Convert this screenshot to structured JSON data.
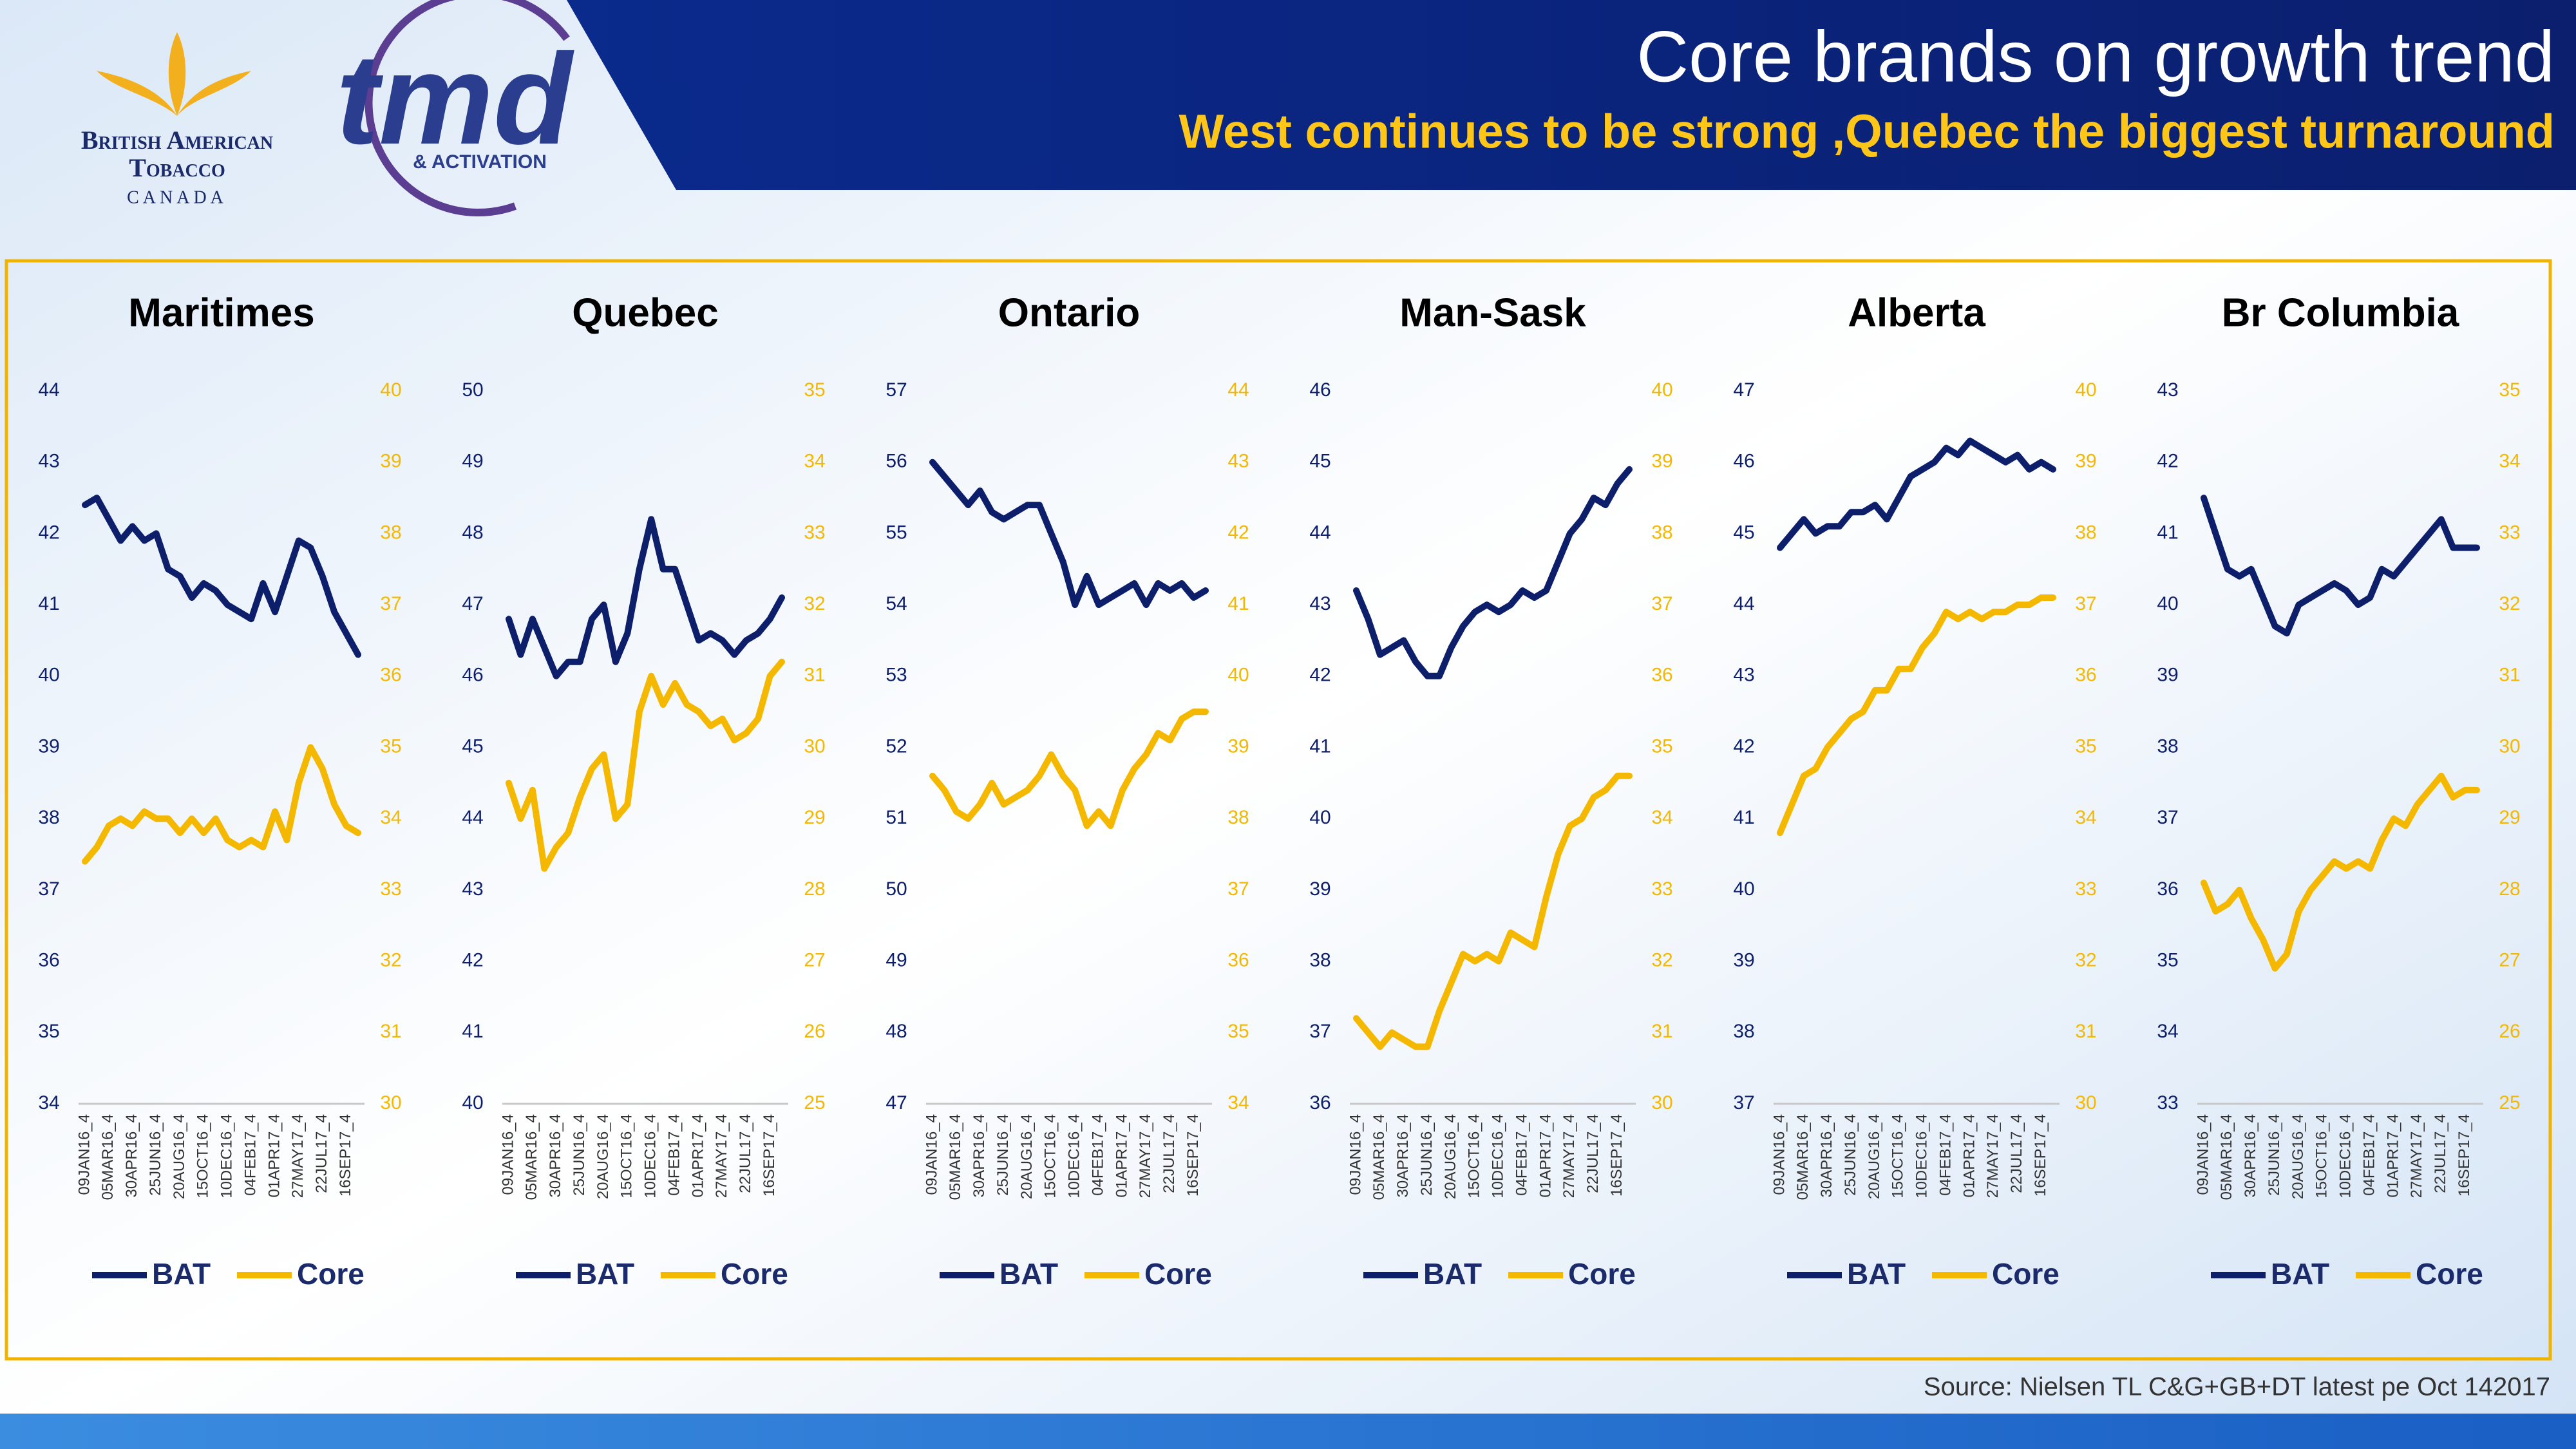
{
  "header": {
    "title": "Core brands on growth trend",
    "subtitle": "West continues to be strong ,Quebec the biggest turnaround"
  },
  "logo": {
    "line1": "British American",
    "line2": "Tobacco",
    "line3": "CANADA",
    "tmd": "tmd",
    "tmd_sub": "& ACTIVATION"
  },
  "source": "Source: Nielsen TL C&G+GB+DT latest pe Oct 142017",
  "chart_data": [
    {
      "type": "line",
      "title": "Maritimes",
      "categories": [
        "09JAN16_4",
        null,
        "05MAR16_4",
        null,
        "30APR16_4",
        null,
        "25JUN16_4",
        null,
        "20AUG16_4",
        null,
        "15OCT16_4",
        null,
        "10DEC16_4",
        null,
        "04FEB17_4",
        null,
        "01APR17_4",
        null,
        "27MAY17_4",
        null,
        "22JUL17_4",
        null,
        "16SEP17_4",
        null
      ],
      "series": [
        {
          "name": "BAT",
          "color": "#0d1f6b",
          "values": [
            42.4,
            42.5,
            42.2,
            41.9,
            42.1,
            41.9,
            42.0,
            41.5,
            41.4,
            41.1,
            41.3,
            41.2,
            41.0,
            40.9,
            40.8,
            41.3,
            40.9,
            41.4,
            41.9,
            41.8,
            41.4,
            40.9,
            40.6,
            40.3
          ]
        },
        {
          "name": "Core",
          "color": "#f5b800",
          "axis": "y2",
          "values": [
            33.4,
            33.6,
            33.9,
            34.0,
            33.9,
            34.1,
            34.0,
            34.0,
            33.8,
            34.0,
            33.8,
            34.0,
            33.7,
            33.6,
            33.7,
            33.6,
            34.1,
            33.7,
            34.5,
            35.0,
            34.7,
            34.2,
            33.9,
            33.8
          ]
        }
      ],
      "ylim": [
        34,
        44
      ],
      "yticks": [
        34,
        35,
        36,
        37,
        38,
        39,
        40,
        41,
        42,
        43,
        44
      ],
      "y2lim": [
        30,
        40
      ],
      "y2ticks": [
        30,
        31,
        32,
        33,
        34,
        35,
        36,
        37,
        38,
        39,
        40
      ]
    },
    {
      "type": "line",
      "title": "Quebec",
      "categories": [
        "09JAN16_4",
        null,
        "05MAR16_4",
        null,
        "30APR16_4",
        null,
        "25JUN16_4",
        null,
        "20AUG16_4",
        null,
        "15OCT16_4",
        null,
        "10DEC16_4",
        null,
        "04FEB17_4",
        null,
        "01APR17_4",
        null,
        "27MAY17_4",
        null,
        "22JUL17_4",
        null,
        "16SEP17_4",
        null
      ],
      "series": [
        {
          "name": "BAT",
          "color": "#0d1f6b",
          "values": [
            46.8,
            46.3,
            46.8,
            46.4,
            46.0,
            46.2,
            46.2,
            46.8,
            47.0,
            46.2,
            46.6,
            47.5,
            48.2,
            47.5,
            47.5,
            47.0,
            46.5,
            46.6,
            46.5,
            46.3,
            46.5,
            46.6,
            46.8,
            47.1
          ]
        },
        {
          "name": "Core",
          "color": "#f5b800",
          "axis": "y2",
          "values": [
            29.5,
            29.0,
            29.4,
            28.3,
            28.6,
            28.8,
            29.3,
            29.7,
            29.9,
            29.0,
            29.2,
            30.5,
            31.0,
            30.6,
            30.9,
            30.6,
            30.5,
            30.3,
            30.4,
            30.1,
            30.2,
            30.4,
            31.0,
            31.2
          ]
        }
      ],
      "ylim": [
        40,
        50
      ],
      "yticks": [
        40,
        41,
        42,
        43,
        44,
        45,
        46,
        47,
        48,
        49,
        50
      ],
      "y2lim": [
        25,
        35
      ],
      "y2ticks": [
        25,
        26,
        27,
        28,
        29,
        30,
        31,
        32,
        33,
        34,
        35
      ]
    },
    {
      "type": "line",
      "title": "Ontario",
      "categories": [
        "09JAN16_4",
        null,
        "05MAR16_4",
        null,
        "30APR16_4",
        null,
        "25JUN16_4",
        null,
        "20AUG16_4",
        null,
        "15OCT16_4",
        null,
        "10DEC16_4",
        null,
        "04FEB17_4",
        null,
        "01APR17_4",
        null,
        "27MAY17_4",
        null,
        "22JUL17_4",
        null,
        "16SEP17_4",
        null
      ],
      "series": [
        {
          "name": "BAT",
          "color": "#0d1f6b",
          "values": [
            56.0,
            55.8,
            55.6,
            55.4,
            55.6,
            55.3,
            55.2,
            55.3,
            55.4,
            55.4,
            55.0,
            54.6,
            54.0,
            54.4,
            54.0,
            54.1,
            54.2,
            54.3,
            54.0,
            54.3,
            54.2,
            54.3,
            54.1,
            54.2
          ]
        },
        {
          "name": "Core",
          "color": "#f5b800",
          "axis": "y2",
          "values": [
            38.6,
            38.4,
            38.1,
            38.0,
            38.2,
            38.5,
            38.2,
            38.3,
            38.4,
            38.6,
            38.9,
            38.6,
            38.4,
            37.9,
            38.1,
            37.9,
            38.4,
            38.7,
            38.9,
            39.2,
            39.1,
            39.4,
            39.5,
            39.5
          ]
        }
      ],
      "ylim": [
        47,
        57
      ],
      "yticks": [
        47,
        48,
        49,
        50,
        51,
        52,
        53,
        54,
        55,
        56,
        57
      ],
      "y2lim": [
        34,
        44
      ],
      "y2ticks": [
        34,
        35,
        36,
        37,
        38,
        39,
        40,
        41,
        42,
        43,
        44
      ]
    },
    {
      "type": "line",
      "title": "Man-Sask",
      "categories": [
        "09JAN16_4",
        null,
        "05MAR16_4",
        null,
        "30APR16_4",
        null,
        "25JUN16_4",
        null,
        "20AUG16_4",
        null,
        "15OCT16_4",
        null,
        "10DEC16_4",
        null,
        "04FEB17_4",
        null,
        "01APR17_4",
        null,
        "27MAY17_4",
        null,
        "22JUL17_4",
        null,
        "16SEP17_4",
        null
      ],
      "series": [
        {
          "name": "BAT",
          "color": "#0d1f6b",
          "values": [
            43.2,
            42.8,
            42.3,
            42.4,
            42.5,
            42.2,
            42.0,
            42.0,
            42.4,
            42.7,
            42.9,
            43.0,
            42.9,
            43.0,
            43.2,
            43.1,
            43.2,
            43.6,
            44.0,
            44.2,
            44.5,
            44.4,
            44.7,
            44.9
          ]
        },
        {
          "name": "Core",
          "color": "#f5b800",
          "axis": "y2",
          "values": [
            31.2,
            31.0,
            30.8,
            31.0,
            30.9,
            30.8,
            30.8,
            31.3,
            31.7,
            32.1,
            32.0,
            32.1,
            32.0,
            32.4,
            32.3,
            32.2,
            32.9,
            33.5,
            33.9,
            34.0,
            34.3,
            34.4,
            34.6,
            34.6
          ]
        }
      ],
      "ylim": [
        36,
        46
      ],
      "yticks": [
        36,
        37,
        38,
        39,
        40,
        41,
        42,
        43,
        44,
        45,
        46
      ],
      "y2lim": [
        30,
        40
      ],
      "y2ticks": [
        30,
        31,
        32,
        33,
        34,
        35,
        36,
        37,
        38,
        39,
        40
      ]
    },
    {
      "type": "line",
      "title": "Alberta",
      "categories": [
        "09JAN16_4",
        null,
        "05MAR16_4",
        null,
        "30APR16_4",
        null,
        "25JUN16_4",
        null,
        "20AUG16_4",
        null,
        "15OCT16_4",
        null,
        "10DEC16_4",
        null,
        "04FEB17_4",
        null,
        "01APR17_4",
        null,
        "27MAY17_4",
        null,
        "22JUL17_4",
        null,
        "16SEP17_4",
        null
      ],
      "series": [
        {
          "name": "BAT",
          "color": "#0d1f6b",
          "values": [
            44.8,
            45.0,
            45.2,
            45.0,
            45.1,
            45.1,
            45.3,
            45.3,
            45.4,
            45.2,
            45.5,
            45.8,
            45.9,
            46.0,
            46.2,
            46.1,
            46.3,
            46.2,
            46.1,
            46.0,
            46.1,
            45.9,
            46.0,
            45.9
          ]
        },
        {
          "name": "Core",
          "color": "#f5b800",
          "axis": "y2",
          "values": [
            33.8,
            34.2,
            34.6,
            34.7,
            35.0,
            35.2,
            35.4,
            35.5,
            35.8,
            35.8,
            36.1,
            36.1,
            36.4,
            36.6,
            36.9,
            36.8,
            36.9,
            36.8,
            36.9,
            36.9,
            37.0,
            37.0,
            37.1,
            37.1
          ]
        }
      ],
      "ylim": [
        37,
        47
      ],
      "yticks": [
        37,
        38,
        39,
        40,
        41,
        42,
        43,
        44,
        45,
        46,
        47
      ],
      "y2lim": [
        30,
        40
      ],
      "y2ticks": [
        30,
        31,
        32,
        33,
        34,
        35,
        36,
        37,
        38,
        39,
        40
      ]
    },
    {
      "type": "line",
      "title": "Br Columbia",
      "categories": [
        "09JAN16_4",
        null,
        "05MAR16_4",
        null,
        "30APR16_4",
        null,
        "25JUN16_4",
        null,
        "20AUG16_4",
        null,
        "15OCT16_4",
        null,
        "10DEC16_4",
        null,
        "04FEB17_4",
        null,
        "01APR17_4",
        null,
        "27MAY17_4",
        null,
        "22JUL17_4",
        null,
        "16SEP17_4",
        null
      ],
      "series": [
        {
          "name": "BAT",
          "color": "#0d1f6b",
          "values": [
            41.5,
            41.0,
            40.5,
            40.4,
            40.5,
            40.1,
            39.7,
            39.6,
            40.0,
            40.1,
            40.2,
            40.3,
            40.2,
            40.0,
            40.1,
            40.5,
            40.4,
            40.6,
            40.8,
            41.0,
            41.2,
            40.8,
            40.8,
            40.8
          ]
        },
        {
          "name": "Core",
          "color": "#f5b800",
          "axis": "y2",
          "values": [
            28.1,
            27.7,
            27.8,
            28.0,
            27.6,
            27.3,
            26.9,
            27.1,
            27.7,
            28.0,
            28.2,
            28.4,
            28.3,
            28.4,
            28.3,
            28.7,
            29.0,
            28.9,
            29.2,
            29.4,
            29.6,
            29.3,
            29.4,
            29.4
          ]
        }
      ],
      "ylim": [
        33,
        43
      ],
      "yticks": [
        33,
        34,
        35,
        36,
        37,
        38,
        39,
        40,
        41,
        42,
        43
      ],
      "y2lim": [
        25,
        35
      ],
      "y2ticks": [
        25,
        26,
        27,
        28,
        29,
        30,
        31,
        32,
        33,
        34,
        35
      ]
    }
  ]
}
